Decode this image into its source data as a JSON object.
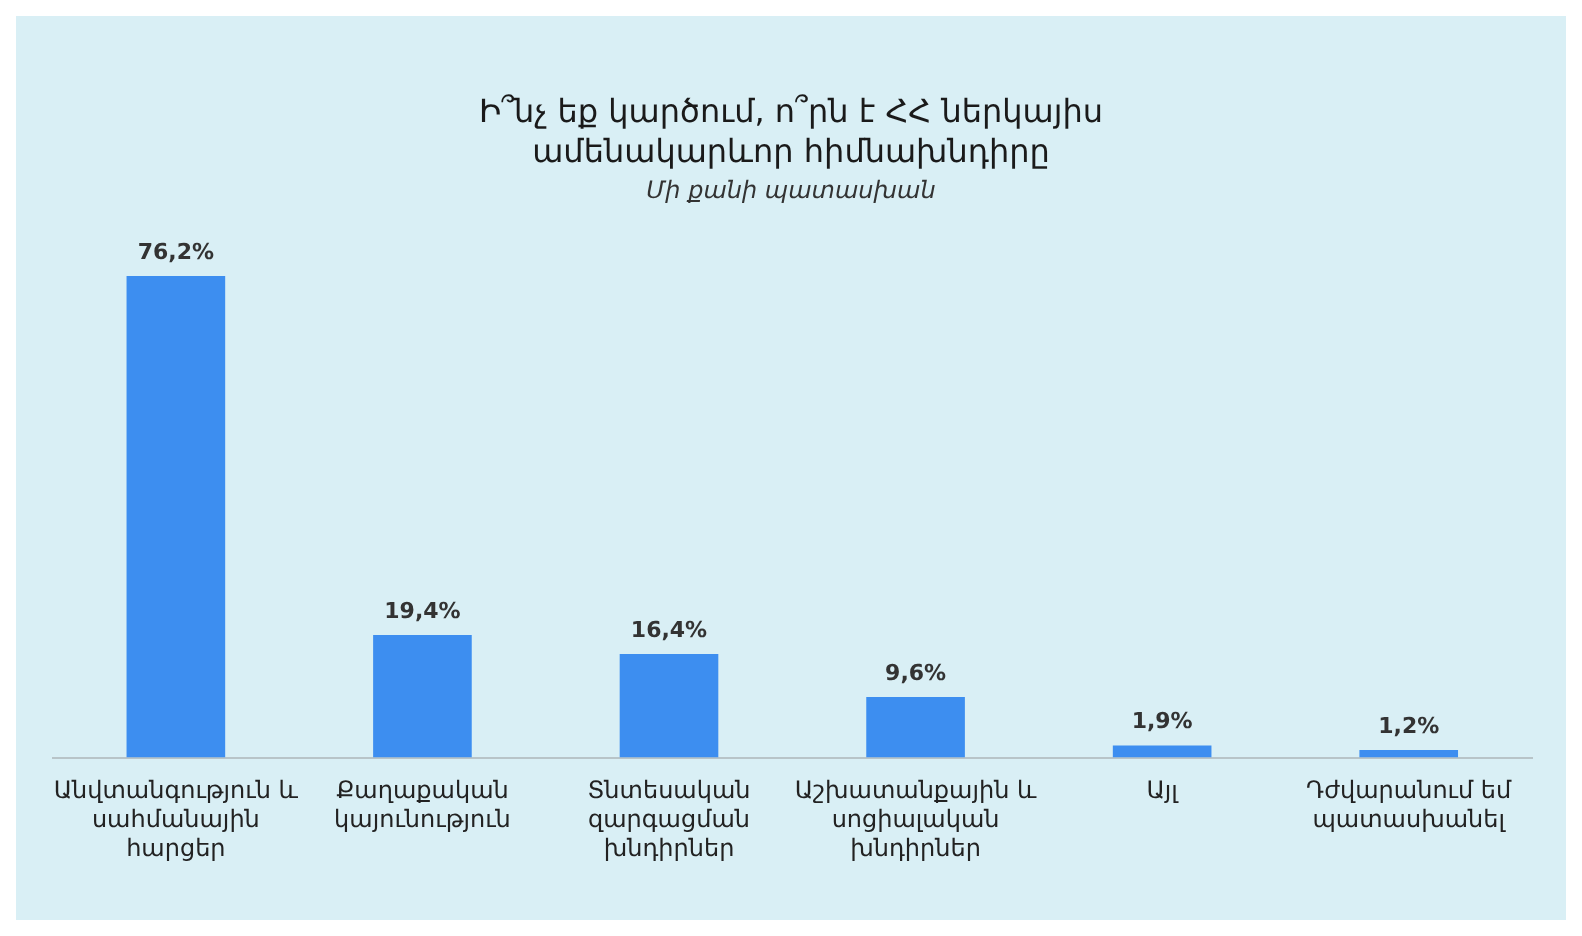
{
  "chart_data": {
    "type": "bar",
    "title": "Ի՞նչ եք կարծում, ո՞րն է ՀՀ ներկայիս ամենակարևոր հիմնախնդիրը",
    "subtitle": "Մի քանի պատասխան",
    "categories": [
      "Անվտանգություն և սահմանային հարցեր",
      "Քաղաքական կայունություն",
      "Տնտեսական զարգացման խնդիրներ",
      "Աշխատանքային և սոցիալական խնդիրներ",
      "Այլ",
      "Դժվարանում եմ պատասխանել"
    ],
    "values": [
      76.2,
      19.4,
      16.4,
      9.6,
      1.9,
      1.2
    ],
    "value_labels": [
      "76,2%",
      "19,4%",
      "16,4%",
      "9,6%",
      "1,9%",
      "1,2%"
    ],
    "color": "#3d8ef0",
    "grid": false,
    "legend": false
  }
}
